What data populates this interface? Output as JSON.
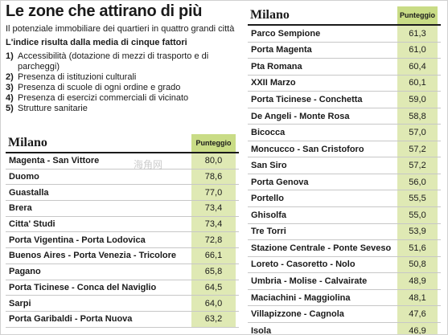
{
  "header": {
    "title": "Le zone che attirano di più",
    "subtitle": "Il potenziale immobiliare dei quartieri in quattro grandi città",
    "lead": "L'indice risulta dalla media di cinque fattori"
  },
  "factors": [
    {
      "num": "1)",
      "text": "Accessibilità (dotazione di mezzi di trasporto e di parcheggi)"
    },
    {
      "num": "2)",
      "text": "Presenza di istituzioni culturali"
    },
    {
      "num": "3)",
      "text": "Presenza di scuole di ogni ordine e grado"
    },
    {
      "num": "4)",
      "text": "Presenza di esercizi commerciali di vicinato"
    },
    {
      "num": "5)",
      "text": "Strutture sanitarie"
    }
  ],
  "left_table": {
    "city": "Milano",
    "score_header": "Punteggio",
    "rows": [
      {
        "name": "Magenta - San Vittore",
        "score": "80,0"
      },
      {
        "name": "Duomo",
        "score": "78,6"
      },
      {
        "name": "Guastalla",
        "score": "77,0"
      },
      {
        "name": "Brera",
        "score": "73,4"
      },
      {
        "name": "Citta' Studi",
        "score": "73,4"
      },
      {
        "name": "Porta Vigentina - Porta Lodovica",
        "score": "72,8"
      },
      {
        "name": "Buenos Aires - Porta Venezia - Tricolore",
        "score": "66,1"
      },
      {
        "name": "Pagano",
        "score": "65,8"
      },
      {
        "name": "Porta Ticinese - Conca del Naviglio",
        "score": "64,5"
      },
      {
        "name": "Sarpi",
        "score": "64,0"
      },
      {
        "name": "Porta Garibaldi - Porta Nuova",
        "score": "63,2"
      }
    ]
  },
  "right_table": {
    "city": "Milano",
    "score_header": "Punteggio",
    "rows": [
      {
        "name": "Parco Sempione",
        "score": "61,3"
      },
      {
        "name": "Porta Magenta",
        "score": "61,0"
      },
      {
        "name": "Pta Romana",
        "score": "60,4"
      },
      {
        "name": "XXII Marzo",
        "score": "60,1"
      },
      {
        "name": "Porta Ticinese - Conchetta",
        "score": "59,0"
      },
      {
        "name": "De Angeli - Monte Rosa",
        "score": "58,8"
      },
      {
        "name": "Bicocca",
        "score": "57,0"
      },
      {
        "name": "Moncucco - San Cristoforo",
        "score": "57,2"
      },
      {
        "name": "San Siro",
        "score": "57,2"
      },
      {
        "name": "Porta Genova",
        "score": "56,0"
      },
      {
        "name": "Portello",
        "score": "55,5"
      },
      {
        "name": "Ghisolfa",
        "score": "55,0"
      },
      {
        "name": "Tre Torri",
        "score": "53,9"
      },
      {
        "name": "Stazione Centrale - Ponte Seveso",
        "score": "51,6"
      },
      {
        "name": "Loreto - Casoretto - Nolo",
        "score": "50,8"
      },
      {
        "name": "Umbria - Molise - Calvairate",
        "score": "48,9"
      },
      {
        "name": "Maciachini - Maggiolina",
        "score": "48,1"
      },
      {
        "name": "Villapizzone - Cagnola",
        "score": "47,6"
      },
      {
        "name": "Isola",
        "score": "46,9"
      }
    ]
  },
  "colors": {
    "header_green": "#c9dc86",
    "cell_green": "#dfe9b4"
  }
}
